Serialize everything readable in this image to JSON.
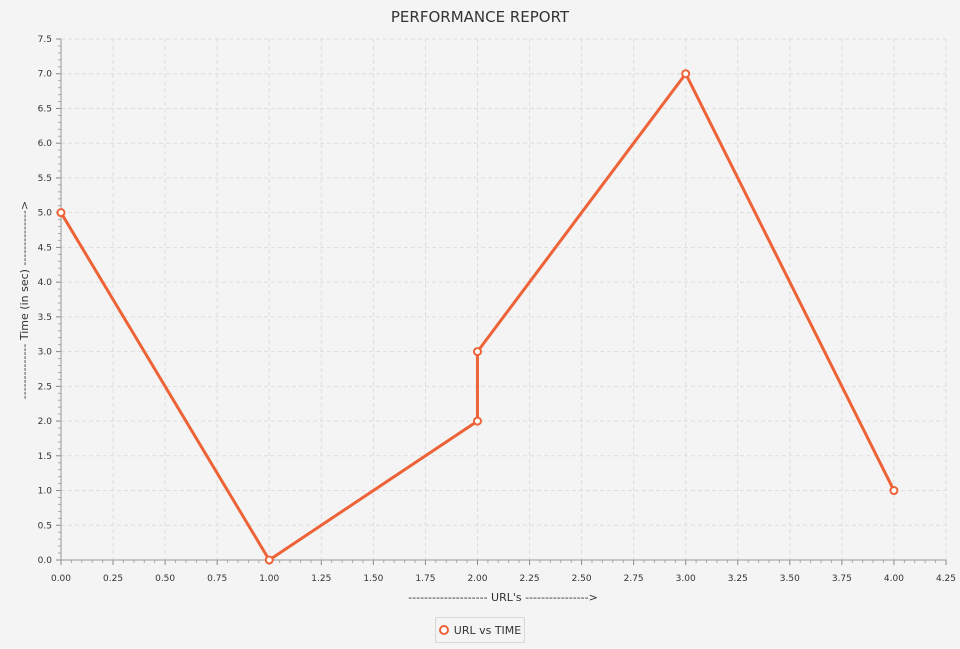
{
  "chart_data": {
    "type": "line",
    "title": "PERFORMANCE REPORT",
    "xlabel": "-------------------- URL's ---------------->",
    "ylabel": "-------------- Time (in sec) -------------->",
    "xlim": [
      0,
      4.25
    ],
    "ylim": [
      0,
      7.5
    ],
    "x_ticks": [
      "0.00",
      "0.25",
      "0.50",
      "0.75",
      "1.00",
      "1.25",
      "1.50",
      "1.75",
      "2.00",
      "2.25",
      "2.50",
      "2.75",
      "3.00",
      "3.25",
      "3.50",
      "3.75",
      "4.00",
      "4.25"
    ],
    "y_ticks": [
      "0.0",
      "0.5",
      "1.0",
      "1.5",
      "2.0",
      "2.5",
      "3.0",
      "3.5",
      "4.0",
      "4.5",
      "5.0",
      "5.5",
      "6.0",
      "6.5",
      "7.0",
      "7.5"
    ],
    "grid": true,
    "legend_position": "bottom-center",
    "color": "#ee6237",
    "series": [
      {
        "name": "URL vs TIME",
        "x": [
          0,
          1,
          2,
          2,
          3,
          4
        ],
        "y": [
          5,
          0,
          2,
          3,
          7,
          1
        ]
      }
    ]
  }
}
